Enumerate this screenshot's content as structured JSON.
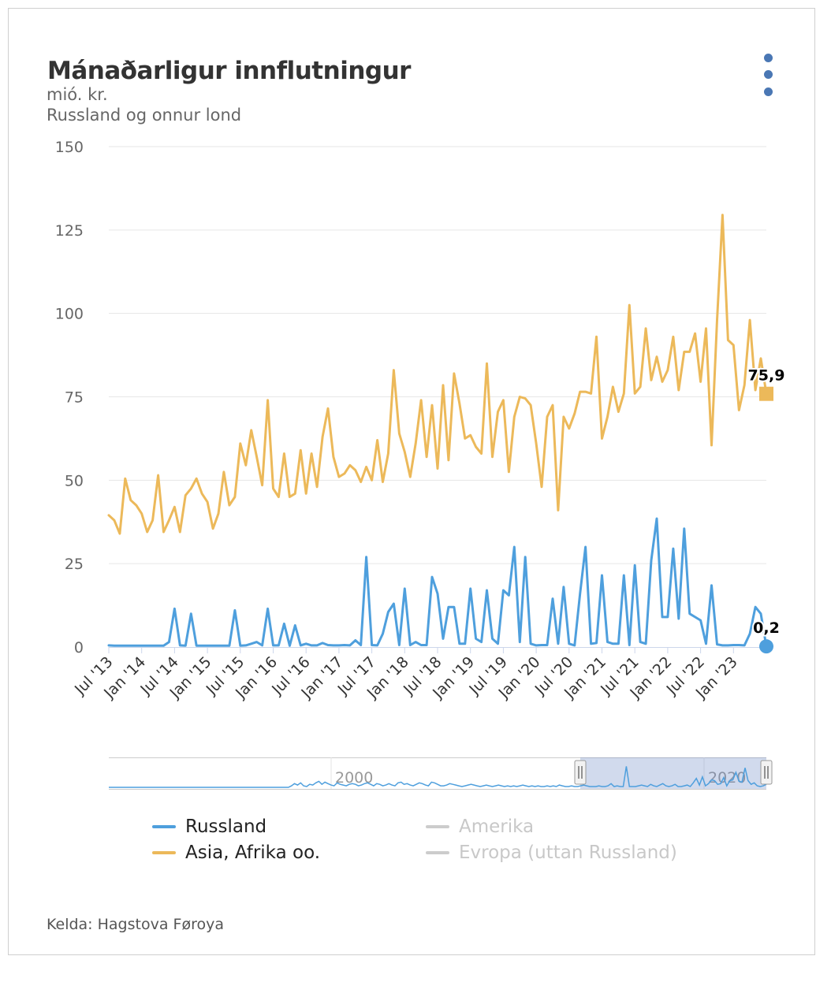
{
  "title": "Mánaðarligur innflutningur",
  "subtitle_unit": "mió. kr.",
  "subtitle": "Russland og onnur lond",
  "credits": "Kelda: Hagstova Føroya",
  "menu_icon": "hamburger-dots-icon",
  "legend": [
    {
      "label": "Russland",
      "color": "#4e9fdd",
      "visible": true
    },
    {
      "label": "Amerika",
      "color": "#cccccc",
      "visible": false
    },
    {
      "label": "Asia, Afrika oo.",
      "color": "#ecb95a",
      "visible": true
    },
    {
      "label": "Evropa (uttan Russland)",
      "color": "#cccccc",
      "visible": false
    }
  ],
  "navigator": {
    "labels": [
      "2000",
      "2020"
    ]
  },
  "chart_data": {
    "type": "line",
    "ylim": [
      0,
      150
    ],
    "y_ticks": [
      0,
      25,
      50,
      75,
      100,
      125,
      150
    ],
    "x_tick_labels": [
      "Jul '13",
      "Jan '14",
      "Jul '14",
      "Jan '15",
      "Jul '15",
      "Jan '16",
      "Jul '16",
      "Jan '17",
      "Jul '17",
      "Jan '18",
      "Jul '18",
      "Jan '19",
      "Jul '19",
      "Jan '20",
      "Jul '20",
      "Jan '21",
      "Jul '21",
      "Jan '22",
      "Jul '22",
      "Jan '23"
    ],
    "x_start": "2013-07",
    "series": [
      {
        "name": "Russland",
        "color": "#4e9fdd",
        "end_label": "0,2",
        "values": [
          0.5,
          0.4,
          0.4,
          0.4,
          0.4,
          0.4,
          0.4,
          0.4,
          0.4,
          0.4,
          0.4,
          1.5,
          11.5,
          0.5,
          0.4,
          10,
          0.4,
          0.4,
          0.4,
          0.4,
          0.4,
          0.4,
          0.4,
          11,
          0.4,
          0.5,
          1,
          1.5,
          0.5,
          11.5,
          0.5,
          0.5,
          7,
          0.4,
          6.5,
          0.5,
          1,
          0.5,
          0.5,
          1.2,
          0.6,
          0.5,
          0.5,
          0.6,
          0.5,
          2,
          0.6,
          27,
          0.6,
          0.5,
          4,
          10.5,
          13,
          0.6,
          17.5,
          0.6,
          1.5,
          0.6,
          0.6,
          21,
          16,
          2.5,
          12,
          12,
          1,
          1,
          17.5,
          2.5,
          1.5,
          17,
          2.5,
          1,
          17,
          15.5,
          30,
          1.5,
          27,
          1,
          0.5,
          0.6,
          0.6,
          14.5,
          1,
          18,
          1,
          0.5,
          16,
          30,
          1,
          1.2,
          21.5,
          1.5,
          1,
          1,
          21.5,
          0.6,
          24.5,
          1.5,
          1,
          26,
          38.5,
          9,
          9,
          29.5,
          8.5,
          35.5,
          10,
          9,
          8,
          1,
          18.5,
          0.8,
          0.5,
          0.5,
          0.6,
          0.6,
          0.5,
          4,
          12,
          10,
          0.2
        ]
      },
      {
        "name": "Asia, Afrika oo.",
        "color": "#ecb95a",
        "end_label": "75,9",
        "values": [
          39.5,
          38,
          34,
          50.5,
          44,
          42.5,
          40,
          34.5,
          38,
          51.5,
          34.5,
          38,
          42,
          34.5,
          45.5,
          47.5,
          50.5,
          46,
          43.5,
          35.5,
          40,
          52.5,
          42.5,
          45,
          61,
          54.5,
          65,
          57,
          48.5,
          74,
          47.5,
          45,
          58,
          45,
          46,
          59,
          46,
          58,
          48,
          63,
          71.5,
          57,
          51,
          52,
          54.5,
          53,
          49.5,
          54,
          50,
          62,
          49.5,
          58,
          83,
          64,
          58.5,
          51,
          61,
          74,
          57,
          72.5,
          53.5,
          78.5,
          56,
          82,
          73,
          62.5,
          63.5,
          60,
          58,
          85,
          57,
          70.5,
          74,
          52.5,
          69,
          75,
          74.5,
          72.5,
          61,
          48,
          69,
          72.5,
          41,
          69,
          65.5,
          70,
          76.5,
          76.5,
          76,
          93,
          62.5,
          69,
          78,
          70.5,
          76,
          102.5,
          76,
          78,
          95.5,
          80,
          87,
          79.5,
          83,
          93,
          77,
          88.5,
          88.5,
          94,
          79.5,
          95.5,
          60.5,
          98,
          129.5,
          92,
          90.5,
          71,
          78.5,
          98,
          77,
          86.5,
          75.9
        ]
      }
    ]
  }
}
